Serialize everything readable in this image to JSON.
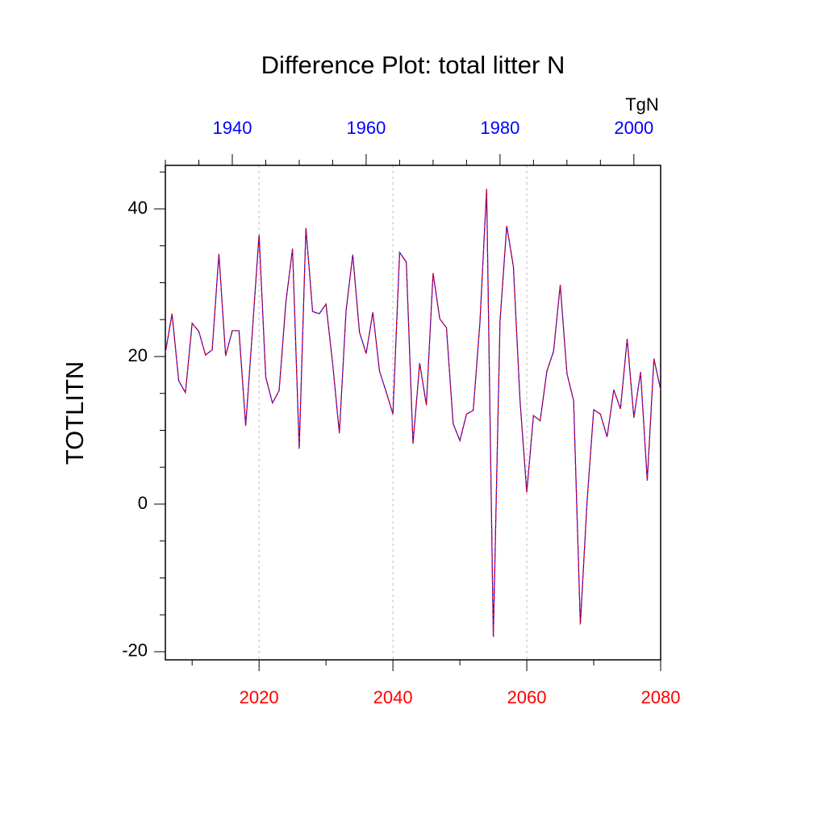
{
  "chart_data": {
    "type": "line",
    "title": "Difference Plot: total litter N",
    "ylabel": "TOTLITN",
    "x2label": "TgN",
    "x": [
      2006,
      2007,
      2008,
      2009,
      2010,
      2011,
      2012,
      2013,
      2014,
      2015,
      2016,
      2017,
      2018,
      2019,
      2020,
      2021,
      2022,
      2023,
      2024,
      2025,
      2026,
      2027,
      2028,
      2029,
      2030,
      2031,
      2032,
      2033,
      2034,
      2035,
      2036,
      2037,
      2038,
      2039,
      2040,
      2041,
      2042,
      2043,
      2044,
      2045,
      2046,
      2047,
      2048,
      2049,
      2050,
      2051,
      2052,
      2053,
      2054,
      2055,
      2056,
      2057,
      2058,
      2059,
      2060,
      2061,
      2062,
      2063,
      2064,
      2065,
      2066,
      2067,
      2068,
      2069,
      2070,
      2071,
      2072,
      2073,
      2074,
      2075,
      2076,
      2077,
      2078,
      2079,
      2080
    ],
    "series": [
      {
        "color": "#0000ff",
        "dashed": false,
        "values": [
          20.5,
          25.8,
          16.7,
          15.1,
          24.5,
          23.4,
          20.2,
          20.9,
          33.9,
          20.1,
          23.5,
          23.5,
          10.6,
          23.4,
          36.5,
          17.2,
          13.7,
          15.4,
          27.3,
          34.6,
          7.5,
          37.4,
          26.1,
          25.8,
          27.1,
          19.0,
          9.6,
          26.2,
          33.8,
          23.3,
          20.4,
          26.0,
          18.0,
          15.2,
          12.2,
          34.1,
          32.8,
          8.2,
          19.1,
          13.4,
          31.3,
          25.1,
          23.9,
          10.9,
          8.6,
          12.2,
          12.7,
          24.6,
          42.7,
          -18.0,
          24.7,
          37.7,
          32.2,
          13.9,
          1.6,
          12.0,
          11.3,
          18.0,
          20.7,
          29.7,
          17.7,
          14.0,
          -16.3,
          0.2,
          12.8,
          12.2,
          9.1,
          15.5,
          12.9,
          22.4,
          11.7,
          17.9,
          3.2,
          19.7,
          15.5
        ]
      },
      {
        "color": "#ff0000",
        "dashed": true,
        "values": [
          20.5,
          25.8,
          16.7,
          15.1,
          24.5,
          23.4,
          20.2,
          20.9,
          33.9,
          20.1,
          23.5,
          23.5,
          10.6,
          23.4,
          36.5,
          17.2,
          13.7,
          15.4,
          27.3,
          34.6,
          7.5,
          37.4,
          26.1,
          25.8,
          27.1,
          19.0,
          9.6,
          26.2,
          33.8,
          23.3,
          20.4,
          26.0,
          18.0,
          15.2,
          12.2,
          34.1,
          32.8,
          8.2,
          19.1,
          13.4,
          31.3,
          25.1,
          23.9,
          10.9,
          8.6,
          12.2,
          12.7,
          24.6,
          42.7,
          -18.0,
          24.7,
          37.7,
          32.2,
          13.9,
          1.6,
          12.0,
          11.3,
          18.0,
          20.7,
          29.7,
          17.7,
          14.0,
          -16.3,
          0.2,
          12.8,
          12.2,
          9.1,
          15.5,
          12.9,
          22.4,
          11.7,
          17.9,
          3.2,
          19.7,
          15.5
        ]
      }
    ],
    "xlim": [
      2006,
      2080
    ],
    "xticks": [
      2020,
      2040,
      2060,
      2080
    ],
    "xminorticks": [
      2010,
      2030,
      2050,
      2070
    ],
    "xtick_color": "#ff0000",
    "x2lim": [
      1930,
      2004
    ],
    "x2ticks": [
      1940,
      1960,
      1980,
      2000
    ],
    "x2minorticks": [
      1930,
      1935,
      1945,
      1950,
      1955,
      1965,
      1970,
      1975,
      1985,
      1990,
      1995
    ],
    "x2tick_color": "#0000ff",
    "ylim": [
      -21.1,
      45.9
    ],
    "yticks": [
      -20,
      0,
      20,
      40
    ],
    "yminorticks": [
      -15,
      -10,
      -5,
      5,
      10,
      15,
      25,
      30,
      35,
      45
    ],
    "grid": true
  }
}
